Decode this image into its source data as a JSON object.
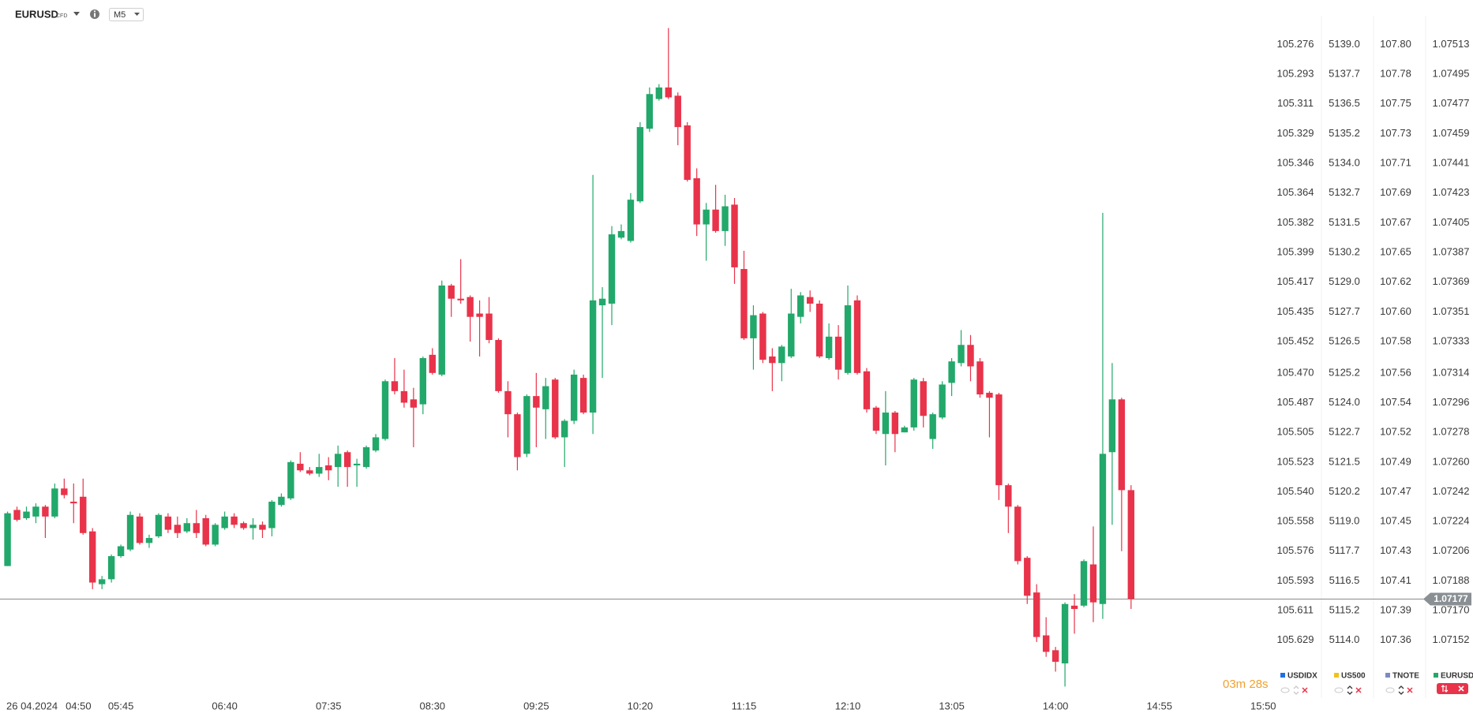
{
  "header": {
    "symbol": "EURUSD",
    "badge": "CFD",
    "timeframe": "M5"
  },
  "chart_data": {
    "type": "candlestick",
    "name": "EURUSD",
    "legend_color": "#22a86a",
    "up_color": "#22a86a",
    "down_color": "#e8334a",
    "date": "26 04.2024",
    "timer": "03m 28s",
    "last_price": 1.07177,
    "xlim": [
      -0.8,
      140
    ],
    "ylim": [
      1.07117,
      1.0754
    ],
    "yticks": [
      1.07513,
      1.07495,
      1.07477,
      1.07459,
      1.07441,
      1.07423,
      1.07405,
      1.07387,
      1.07369,
      1.07351,
      1.07333,
      1.07314,
      1.07296,
      1.07278,
      {
        "value": 1.0726,
        "label": "1.07260"
      },
      1.07242,
      1.07224,
      1.07206,
      1.07188,
      {
        "value": 1.0717,
        "label": "1.07170"
      },
      1.07152
    ],
    "xticks": [
      {
        "value": 1,
        "label": "04:50"
      },
      {
        "value": 12,
        "label": "05:45"
      },
      {
        "value": 23,
        "label": "06:40"
      },
      {
        "value": 34,
        "label": "07:35"
      },
      {
        "value": 45,
        "label": "08:30"
      },
      {
        "value": 56,
        "label": "09:25"
      },
      {
        "value": 67,
        "label": "10:20"
      },
      {
        "value": 78,
        "label": "11:15"
      },
      {
        "value": 89,
        "label": "12:10"
      },
      {
        "value": 100,
        "label": "13:05"
      },
      {
        "value": 111,
        "label": "14:00"
      },
      {
        "value": 122,
        "label": "14:55"
      },
      {
        "value": 133,
        "label": "15:50"
      }
    ],
    "open": [
      1.07197,
      1.07231,
      1.07226,
      1.07227,
      1.07233,
      1.07227,
      1.07244,
      1.07236,
      1.07239,
      1.07218,
      1.07186,
      1.07189,
      1.07203,
      1.07207,
      1.07227,
      1.07211,
      1.07215,
      1.07227,
      1.07222,
      1.07218,
      1.07223,
      1.07226,
      1.0721,
      1.0722,
      1.07227,
      1.07223,
      1.0722,
      1.07222,
      1.0722,
      1.07234,
      1.07238,
      1.07259,
      1.07255,
      1.07253,
      1.07258,
      1.07257,
      1.07266,
      1.07258,
      1.07257,
      1.07267,
      1.07274,
      1.07309,
      1.07303,
      1.07298,
      1.07295,
      1.07325,
      1.07313,
      1.07367,
      1.07359,
      1.0736,
      1.0735,
      1.0735,
      1.07334,
      1.07303,
      1.07289,
      1.07265,
      1.073,
      1.07292,
      1.0731,
      1.07275,
      1.07285,
      1.07311,
      1.0729,
      1.07355,
      1.07356,
      1.07396,
      1.07394,
      1.07418,
      1.07462,
      1.0748,
      1.07487,
      1.07482,
      1.07464,
      1.07432,
      1.07404,
      1.07413,
      1.074,
      1.07416,
      1.07377,
      1.07335,
      1.0735,
      1.07324,
      1.0732,
      1.07324,
      1.07348,
      1.0736,
      1.07356,
      1.07323,
      1.07336,
      1.07314,
      1.07358,
      1.07315,
      1.07293,
      1.07277,
      1.0729,
      1.07278,
      1.07281,
      1.07309,
      1.07274,
      1.07287,
      1.07308,
      1.0732,
      1.07331,
      1.07321,
      1.07302,
      1.07301,
      1.07246,
      1.07233,
      1.07202,
      1.07181,
      1.07155,
      1.07146,
      1.07138,
      1.07173,
      1.07173,
      1.07198,
      1.07174,
      1.07266,
      1.07298,
      1.07243
    ],
    "high": [
      1.0723,
      1.07233,
      1.07233,
      1.07235,
      1.07234,
      1.07247,
      1.0725,
      1.07247,
      1.0725,
      1.0722,
      1.07191,
      1.07204,
      1.0721,
      1.0723,
      1.07229,
      1.07216,
      1.07229,
      1.07229,
      1.07227,
      1.07226,
      1.07231,
      1.07228,
      1.07223,
      1.0723,
      1.07229,
      1.07224,
      1.07226,
      1.07224,
      1.07237,
      1.07241,
      1.07261,
      1.07266,
      1.07257,
      1.07265,
      1.07263,
      1.0727,
      1.07267,
      1.07262,
      1.0727,
      1.07277,
      1.0731,
      1.07323,
      1.07316,
      1.07305,
      1.07324,
      1.07329,
      1.0737,
      1.07368,
      1.07383,
      1.07361,
      1.07358,
      1.0736,
      1.07335,
      1.07309,
      1.0729,
      1.07301,
      1.07314,
      1.07311,
      1.07311,
      1.07286,
      1.07316,
      1.07313,
      1.07434,
      1.07366,
      1.07403,
      1.07404,
      1.07423,
      1.07466,
      1.07487,
      1.07489,
      1.07523,
      1.07484,
      1.07466,
      1.07438,
      1.07417,
      1.07428,
      1.07422,
      1.0742,
      1.07388,
      1.07355,
      1.07351,
      1.07329,
      1.07331,
      1.07365,
      1.07363,
      1.07364,
      1.07358,
      1.07344,
      1.07343,
      1.07367,
      1.07361,
      1.07317,
      1.07294,
      1.07303,
      1.07291,
      1.07282,
      1.07311,
      1.07311,
      1.0729,
      1.07309,
      1.07323,
      1.0734,
      1.07337,
      1.07323,
      1.07303,
      1.07302,
      1.07247,
      1.07234,
      1.07203,
      1.07186,
      1.07166,
      1.07148,
      1.07175,
      1.0718,
      1.07201,
      1.07221,
      1.07411,
      1.0732,
      1.07299,
      1.07246
    ],
    "low": [
      1.07197,
      1.07224,
      1.07225,
      1.07223,
      1.07214,
      1.07226,
      1.07238,
      1.07223,
      1.07216,
      1.07183,
      1.07183,
      1.07187,
      1.07202,
      1.07206,
      1.0721,
      1.07208,
      1.07214,
      1.07217,
      1.07214,
      1.07217,
      1.07214,
      1.07209,
      1.07209,
      1.07219,
      1.0722,
      1.07219,
      1.07213,
      1.07214,
      1.07215,
      1.07233,
      1.07237,
      1.07254,
      1.07252,
      1.07251,
      1.07249,
      1.07245,
      1.07245,
      1.07245,
      1.07256,
      1.07266,
      1.07273,
      1.07301,
      1.07293,
      1.07269,
      1.07289,
      1.07313,
      1.07312,
      1.07348,
      1.07356,
      1.07333,
      1.07324,
      1.07332,
      1.07302,
      1.07275,
      1.07255,
      1.07263,
      1.07269,
      1.07274,
      1.07274,
      1.07257,
      1.07283,
      1.07289,
      1.07277,
      1.07311,
      1.07343,
      1.07395,
      1.07393,
      1.07417,
      1.0746,
      1.07479,
      1.0748,
      1.07452,
      1.0743,
      1.07397,
      1.07382,
      1.07399,
      1.07391,
      1.07368,
      1.07334,
      1.07316,
      1.0732,
      1.07303,
      1.07309,
      1.07323,
      1.07344,
      1.07351,
      1.07323,
      1.07322,
      1.0731,
      1.07313,
      1.07313,
      1.0729,
      1.07277,
      1.07258,
      1.07266,
      1.07278,
      1.07279,
      1.07281,
      1.07268,
      1.07286,
      1.073,
      1.07318,
      1.07309,
      1.07299,
      1.07275,
      1.07237,
      1.07217,
      1.07198,
      1.07174,
      1.07151,
      1.07142,
      1.07133,
      1.07124,
      1.07156,
      1.07172,
      1.07163,
      1.07165,
      1.07222,
      1.07206,
      1.07171
    ],
    "close": [
      1.07229,
      1.07225,
      1.0723,
      1.07233,
      1.07227,
      1.07244,
      1.0724,
      1.07235,
      1.07217,
      1.07187,
      1.07189,
      1.07203,
      1.07209,
      1.07228,
      1.07211,
      1.07214,
      1.07228,
      1.07219,
      1.07217,
      1.07223,
      1.07217,
      1.0721,
      1.07222,
      1.07227,
      1.07222,
      1.0722,
      1.07222,
      1.07219,
      1.07236,
      1.07239,
      1.0726,
      1.07255,
      1.07253,
      1.07257,
      1.07255,
      1.07265,
      1.07257,
      1.07259,
      1.07269,
      1.07275,
      1.07309,
      1.07303,
      1.07296,
      1.07293,
      1.07323,
      1.07314,
      1.07367,
      1.07359,
      1.07358,
      1.07348,
      1.07348,
      1.07334,
      1.07303,
      1.07289,
      1.07263,
      1.073,
      1.07293,
      1.07306,
      1.07275,
      1.07285,
      1.07313,
      1.0729,
      1.07358,
      1.07359,
      1.07398,
      1.074,
      1.07419,
      1.07463,
      1.07483,
      1.07487,
      1.07481,
      1.07463,
      1.07431,
      1.07404,
      1.07413,
      1.074,
      1.07415,
      1.07378,
      1.07335,
      1.07349,
      1.07322,
      1.0732,
      1.0733,
      1.0735,
      1.07361,
      1.07356,
      1.07324,
      1.07336,
      1.07316,
      1.07355,
      1.07314,
      1.07292,
      1.07279,
      1.0729,
      1.07277,
      1.07281,
      1.0731,
      1.07288,
      1.07289,
      1.07307,
      1.07321,
      1.07331,
      1.07318,
      1.07301,
      1.07299,
      1.07246,
      1.07233,
      1.072,
      1.07179,
      1.07154,
      1.07145,
      1.07139,
      1.07174,
      1.07171,
      1.072,
      1.07175,
      1.07265,
      1.07298,
      1.07243,
      1.07177
    ],
    "other_scales": [
      {
        "name": "USDIDX",
        "color": "#1f6fe5",
        "labels": [
          "105.276",
          "105.293",
          "105.311",
          "105.329",
          "105.346",
          "105.364",
          "105.382",
          "105.399",
          "105.417",
          "105.435",
          "105.452",
          "105.470",
          "105.487",
          "105.505",
          "105.523",
          "105.540",
          "105.558",
          "105.576",
          "105.593",
          "105.611",
          "105.629"
        ]
      },
      {
        "name": "US500",
        "color": "#f2c21b",
        "labels": [
          "5139.0",
          "5137.7",
          "5136.5",
          "5135.2",
          "5134.0",
          "5132.7",
          "5131.5",
          "5130.2",
          "5129.0",
          "5127.7",
          "5126.5",
          "5125.2",
          "5124.0",
          "5122.7",
          "5121.5",
          "5120.2",
          "5119.0",
          "5117.7",
          "5116.5",
          "5115.2",
          "5114.0"
        ]
      },
      {
        "name": "TNOTE",
        "color": "#7d8ac2",
        "labels": [
          "107.80",
          "107.78",
          "107.75",
          "107.73",
          "107.71",
          "107.69",
          "107.67",
          "107.65",
          "107.62",
          "107.60",
          "107.58",
          "107.56",
          "107.54",
          "107.52",
          "107.49",
          "107.47",
          "107.45",
          "107.43",
          "107.41",
          "107.39",
          "107.36"
        ]
      }
    ]
  }
}
